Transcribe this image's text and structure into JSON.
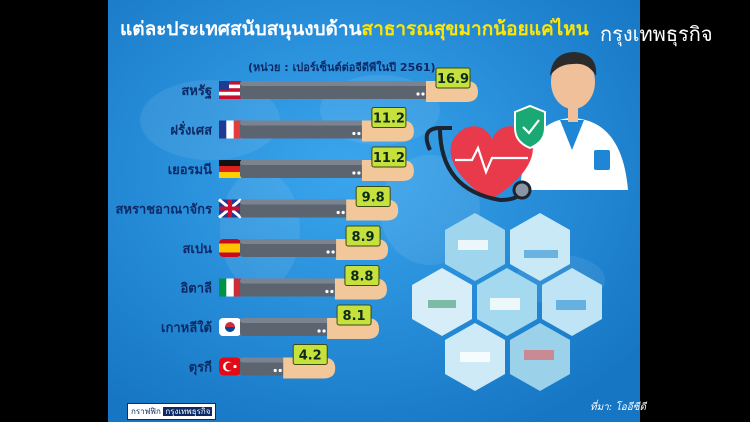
{
  "page": {
    "title_part1": "แต่ละประเทศสนับสนุนงบด้าน",
    "title_part2": "สาธารณสุขมากน้อยแค่ไหน",
    "brand": "กรุงเทพธุรกิจ",
    "unit_note": "(หน่วย : เปอร์เซ็นต์ต่อจีดีพีในปี 2561)",
    "source": "ที่มา: โออีซีดี",
    "credit_label": "กราฟฟิก",
    "credit_brand": "กรุงเทพธุรกิจ"
  },
  "colors": {
    "background": "#1f86d6",
    "bar": "#5c6470",
    "value_box": "#c6e03c",
    "hand": "#f2c79a",
    "label": "#0d2a66"
  },
  "chart_data": {
    "type": "bar",
    "orientation": "horizontal",
    "title": "แต่ละประเทศสนับสนุนงบด้านสาธารณสุขมากน้อยแค่ไหน",
    "unit": "(หน่วย : เปอร์เซ็นต์ต่อจีดีพีในปี 2561)",
    "categories": [
      "สหรัฐ",
      "ฝรั่งเศส",
      "เยอรมนี",
      "สหราชอาณาจักร",
      "สเปน",
      "อิตาลี",
      "เกาหลีใต้",
      "ตุรกี"
    ],
    "flags": [
      "us-flag-icon",
      "france-flag-icon",
      "germany-flag-icon",
      "uk-flag-icon",
      "spain-flag-icon",
      "italy-flag-icon",
      "south-korea-flag-icon",
      "turkey-flag-icon"
    ],
    "values": [
      16.9,
      11.2,
      11.2,
      9.8,
      8.9,
      8.8,
      8.1,
      4.2
    ],
    "value_labels": [
      "16.9",
      "11.2",
      "11.2",
      "9.8",
      "8.9",
      "8.8",
      "8.1",
      "4.2"
    ],
    "xlim": [
      0,
      16.9
    ],
    "grid": false,
    "legend": "none"
  }
}
